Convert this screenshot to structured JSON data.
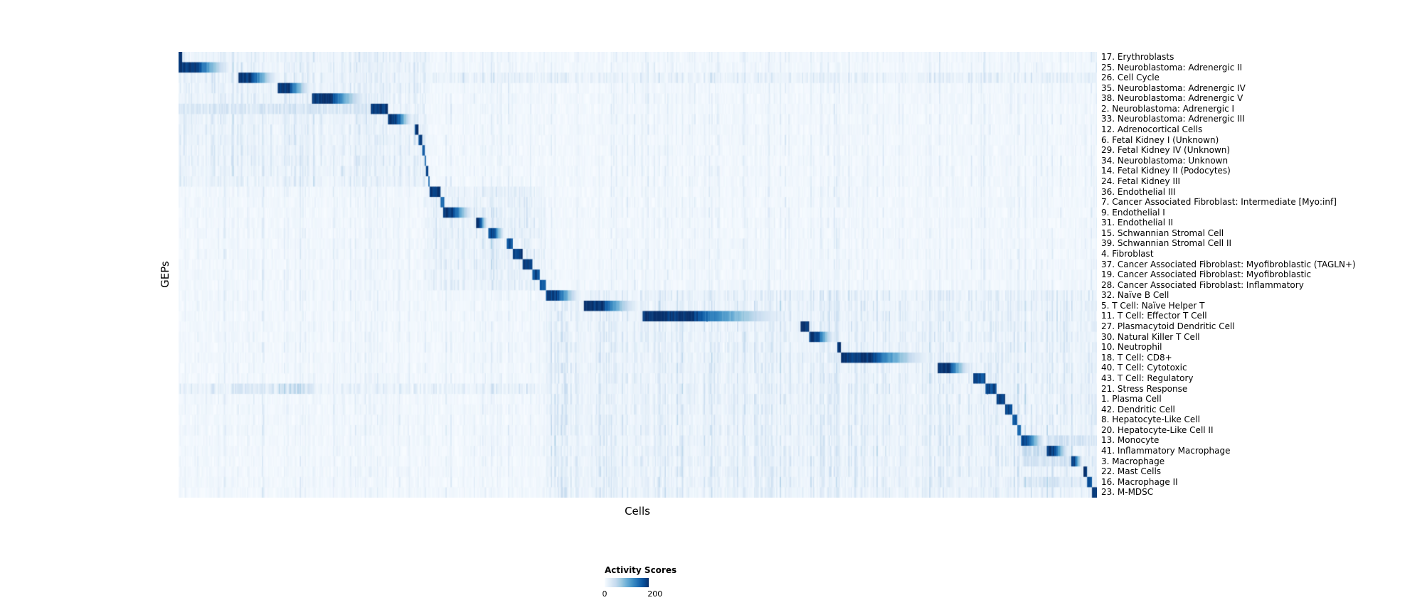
{
  "chart_data": {
    "type": "heatmap",
    "title": "",
    "xlabel": "Cells",
    "ylabel": "GEPs",
    "colorbar": {
      "label": "Activity Scores",
      "min": 0,
      "max": 200,
      "min_label": "0",
      "max_label": "200"
    },
    "colormap": "Blues",
    "colormap_stops": [
      "#f7fbff",
      "#deebf7",
      "#c6dbef",
      "#9ecae1",
      "#6baed6",
      "#4292c6",
      "#2171b5",
      "#08519c",
      "#08306b"
    ],
    "n_cols": 750,
    "noise": {
      "seed": 42,
      "base": 9,
      "streak_amp": 45,
      "global_amp": 30
    },
    "communities": {
      "nb": [
        0.0,
        0.27
      ],
      "st": [
        0.27,
        0.4
      ],
      "im": [
        0.4,
        1.0
      ],
      "all": [
        0.0,
        1.0
      ]
    },
    "rows": [
      {
        "label": "17. Erythroblasts",
        "c": "nb",
        "segments": [
          {
            "s": 0.0,
            "e": 0.004,
            "p": 200,
            "f": "solid"
          }
        ]
      },
      {
        "label": "25. Neuroblastoma: Adrenergic II",
        "c": "nb",
        "segments": [
          {
            "s": 0.0,
            "e": 0.062,
            "p": 200,
            "f": "fade"
          }
        ]
      },
      {
        "label": "26. Cell Cycle",
        "c": "all",
        "segments": [
          {
            "s": 0.065,
            "e": 0.112,
            "p": 200,
            "f": "fade"
          }
        ]
      },
      {
        "label": "35. Neuroblastoma: Adrenergic IV",
        "c": "nb",
        "segments": [
          {
            "s": 0.108,
            "e": 0.148,
            "p": 200,
            "f": "fade"
          }
        ]
      },
      {
        "label": "38. Neuroblastoma: Adrenergic V",
        "c": "nb",
        "segments": [
          {
            "s": 0.146,
            "e": 0.21,
            "p": 200,
            "f": "fade"
          }
        ]
      },
      {
        "label": "2. Neuroblastoma: Adrenergic I",
        "c": "nb",
        "segments": [
          {
            "s": 0.21,
            "e": 0.228,
            "p": 200,
            "f": "solid"
          },
          {
            "s": 0.0,
            "e": 0.21,
            "p": 45,
            "f": "soft"
          }
        ]
      },
      {
        "label": "33. Neuroblastoma: Adrenergic III",
        "c": "nb",
        "segments": [
          {
            "s": 0.228,
            "e": 0.258,
            "p": 200,
            "f": "fade"
          }
        ]
      },
      {
        "label": "12. Adrenocortical Cells",
        "c": "nb",
        "segments": [
          {
            "s": 0.258,
            "e": 0.262,
            "p": 200,
            "f": "solid"
          }
        ]
      },
      {
        "label": "6. Fetal Kidney I (Unknown)",
        "c": "nb",
        "segments": [
          {
            "s": 0.262,
            "e": 0.265,
            "p": 190,
            "f": "solid"
          }
        ]
      },
      {
        "label": "29. Fetal Kidney IV (Unknown)",
        "c": "nb",
        "segments": [
          {
            "s": 0.265,
            "e": 0.268,
            "p": 180,
            "f": "solid"
          }
        ]
      },
      {
        "label": "34. Neuroblastoma: Unknown",
        "c": "nb",
        "segments": [
          {
            "s": 0.268,
            "e": 0.27,
            "p": 170,
            "f": "solid"
          }
        ]
      },
      {
        "label": "14. Fetal Kidney II (Podocytes)",
        "c": "nb",
        "segments": [
          {
            "s": 0.27,
            "e": 0.272,
            "p": 180,
            "f": "solid"
          }
        ]
      },
      {
        "label": "24. Fetal Kidney III",
        "c": "nb",
        "segments": [
          {
            "s": 0.272,
            "e": 0.274,
            "p": 170,
            "f": "solid"
          }
        ]
      },
      {
        "label": "36. Endothelial III",
        "c": "st",
        "segments": [
          {
            "s": 0.274,
            "e": 0.285,
            "p": 200,
            "f": "solid"
          }
        ]
      },
      {
        "label": "7. Cancer Associated Fibroblast: Intermediate [Myo:inf]",
        "c": "st",
        "segments": [
          {
            "s": 0.285,
            "e": 0.29,
            "p": 160,
            "f": "solid"
          }
        ]
      },
      {
        "label": "9. Endothelial I",
        "c": "st",
        "segments": [
          {
            "s": 0.288,
            "e": 0.324,
            "p": 200,
            "f": "fade"
          }
        ]
      },
      {
        "label": "31. Endothelial II",
        "c": "st",
        "segments": [
          {
            "s": 0.324,
            "e": 0.338,
            "p": 200,
            "f": "fade"
          }
        ]
      },
      {
        "label": "15. Schwannian Stromal Cell",
        "c": "st",
        "segments": [
          {
            "s": 0.338,
            "e": 0.357,
            "p": 190,
            "f": "fade"
          }
        ]
      },
      {
        "label": "39. Schwannian Stromal Cell II",
        "c": "st",
        "segments": [
          {
            "s": 0.357,
            "e": 0.364,
            "p": 180,
            "f": "solid"
          }
        ]
      },
      {
        "label": "4. Fibroblast",
        "c": "st",
        "segments": [
          {
            "s": 0.364,
            "e": 0.375,
            "p": 200,
            "f": "solid"
          }
        ]
      },
      {
        "label": "37. Cancer Associated Fibroblast: Myofibroblastic (TAGLN+)",
        "c": "st",
        "segments": [
          {
            "s": 0.375,
            "e": 0.385,
            "p": 200,
            "f": "solid"
          }
        ]
      },
      {
        "label": "19. Cancer Associated Fibroblast: Myofibroblastic",
        "c": "st",
        "segments": [
          {
            "s": 0.385,
            "e": 0.393,
            "p": 185,
            "f": "solid"
          }
        ]
      },
      {
        "label": "28. Cancer Associated Fibroblast: Inflammatory",
        "c": "st",
        "segments": [
          {
            "s": 0.393,
            "e": 0.4,
            "p": 175,
            "f": "solid"
          }
        ]
      },
      {
        "label": "32. Naïve B Cell",
        "c": "im",
        "segments": [
          {
            "s": 0.4,
            "e": 0.441,
            "p": 190,
            "f": "fade"
          }
        ]
      },
      {
        "label": "5. T Cell: Naïve Helper T",
        "c": "im",
        "segments": [
          {
            "s": 0.441,
            "e": 0.506,
            "p": 200,
            "f": "fade"
          }
        ]
      },
      {
        "label": "11. T Cell: Effector T Cell",
        "c": "im",
        "segments": [
          {
            "s": 0.506,
            "e": 0.678,
            "p": 200,
            "f": "fade"
          }
        ]
      },
      {
        "label": "27. Plasmacytoid Dendritic Cell",
        "c": "im",
        "segments": [
          {
            "s": 0.678,
            "e": 0.687,
            "p": 200,
            "f": "solid"
          }
        ]
      },
      {
        "label": "30. Natural Killer T Cell",
        "c": "im",
        "segments": [
          {
            "s": 0.687,
            "e": 0.717,
            "p": 190,
            "f": "fade"
          }
        ]
      },
      {
        "label": "10. Neutrophil",
        "c": "im",
        "segments": [
          {
            "s": 0.717,
            "e": 0.722,
            "p": 200,
            "f": "solid"
          }
        ]
      },
      {
        "label": "18. T Cell: CD8+",
        "c": "im",
        "segments": [
          {
            "s": 0.722,
            "e": 0.827,
            "p": 200,
            "f": "fade"
          }
        ]
      },
      {
        "label": "40. T Cell: Cytotoxic",
        "c": "im",
        "segments": [
          {
            "s": 0.827,
            "e": 0.866,
            "p": 200,
            "f": "fade"
          }
        ]
      },
      {
        "label": "43. T Cell: Regulatory",
        "c": "im",
        "segments": [
          {
            "s": 0.866,
            "e": 0.879,
            "p": 185,
            "f": "solid"
          }
        ]
      },
      {
        "label": "21. Stress Response",
        "c": "all",
        "segments": [
          {
            "s": 0.879,
            "e": 0.891,
            "p": 185,
            "f": "solid"
          },
          {
            "s": 0.108,
            "e": 0.148,
            "p": 70,
            "f": "soft"
          },
          {
            "s": 0.06,
            "e": 0.105,
            "p": 40,
            "f": "soft"
          }
        ]
      },
      {
        "label": "1. Plasma Cell",
        "c": "im",
        "segments": [
          {
            "s": 0.891,
            "e": 0.9,
            "p": 200,
            "f": "solid"
          }
        ]
      },
      {
        "label": "42. Dendritic Cell",
        "c": "im",
        "segments": [
          {
            "s": 0.9,
            "e": 0.908,
            "p": 185,
            "f": "solid"
          }
        ]
      },
      {
        "label": "8. Hepatocyte-Like Cell",
        "c": "im",
        "segments": [
          {
            "s": 0.908,
            "e": 0.913,
            "p": 170,
            "f": "solid"
          }
        ]
      },
      {
        "label": "20. Hepatocyte-Like Cell II",
        "c": "im",
        "segments": [
          {
            "s": 0.913,
            "e": 0.917,
            "p": 160,
            "f": "solid"
          }
        ]
      },
      {
        "label": "13. Monocyte",
        "c": "im",
        "segments": [
          {
            "s": 0.917,
            "e": 0.946,
            "p": 180,
            "f": "fade"
          },
          {
            "s": 0.946,
            "e": 1.0,
            "p": 50,
            "f": "soft"
          }
        ]
      },
      {
        "label": "41. Inflammatory Macrophage",
        "c": "im",
        "segments": [
          {
            "s": 0.946,
            "e": 0.972,
            "p": 190,
            "f": "fade"
          },
          {
            "s": 0.917,
            "e": 0.946,
            "p": 60,
            "f": "soft"
          }
        ]
      },
      {
        "label": "3. Macrophage",
        "c": "im",
        "segments": [
          {
            "s": 0.972,
            "e": 0.986,
            "p": 185,
            "f": "fade"
          },
          {
            "s": 0.917,
            "e": 0.972,
            "p": 50,
            "f": "soft"
          }
        ]
      },
      {
        "label": "22. Mast Cells",
        "c": "im",
        "segments": [
          {
            "s": 0.986,
            "e": 0.99,
            "p": 200,
            "f": "solid"
          }
        ]
      },
      {
        "label": "16. Macrophage II",
        "c": "im",
        "segments": [
          {
            "s": 0.99,
            "e": 0.995,
            "p": 185,
            "f": "solid"
          },
          {
            "s": 0.917,
            "e": 0.99,
            "p": 45,
            "f": "soft"
          }
        ]
      },
      {
        "label": "23. M-MDSC",
        "c": "im",
        "segments": [
          {
            "s": 0.995,
            "e": 1.0,
            "p": 200,
            "f": "solid"
          }
        ]
      }
    ]
  }
}
